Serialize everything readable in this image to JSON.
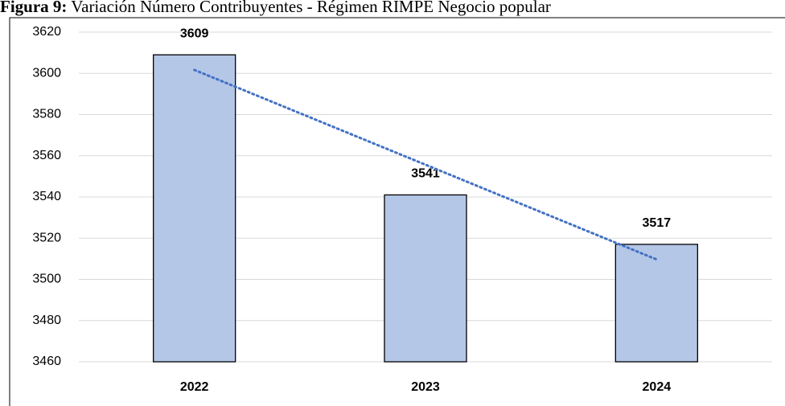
{
  "chart_data": {
    "type": "bar",
    "figure_label": "Figura 9:",
    "title": "Variación Número Contribuyentes - Régimen RIMPE Negocio popular",
    "categories": [
      "2022",
      "2023",
      "2024"
    ],
    "values": [
      3609,
      3541,
      3517
    ],
    "color": "#b4c7e7",
    "edge_color": "#000000",
    "ylim": [
      3460,
      3620
    ],
    "yticks": [
      3460,
      3480,
      3500,
      3520,
      3540,
      3560,
      3580,
      3600,
      3620
    ],
    "grid": true,
    "trendline": {
      "type": "linear",
      "style": "dotted",
      "color": "#4472c4"
    }
  }
}
